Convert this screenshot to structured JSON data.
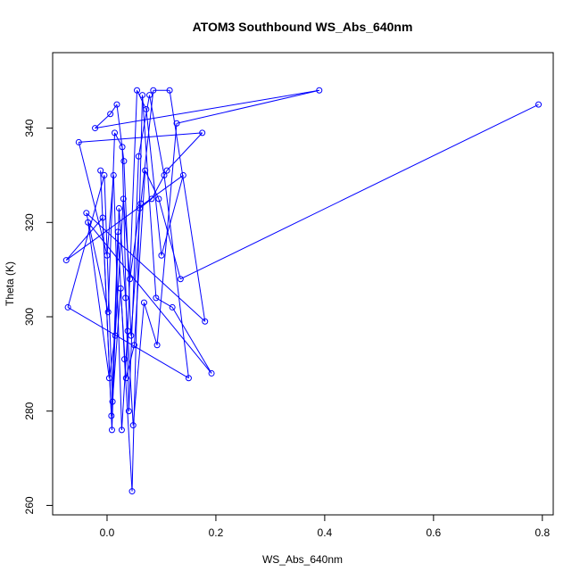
{
  "chart_data": {
    "type": "scatter",
    "title": "ATOM3 Southbound WS_Abs_640nm",
    "xlabel": "WS_Abs_640nm",
    "ylabel": "Theta (K)",
    "xlim": [
      -0.1,
      0.82
    ],
    "ylim": [
      258,
      356
    ],
    "xticks": [
      0.0,
      0.2,
      0.4,
      0.6,
      0.8
    ],
    "xtick_labels": [
      "0.0",
      "0.2",
      "0.4",
      "0.6",
      "0.8"
    ],
    "yticks": [
      260,
      280,
      300,
      320,
      340
    ],
    "ytick_labels": [
      "260",
      "280",
      "300",
      "320",
      "340"
    ],
    "marker": "open-circle",
    "connected": true,
    "grid": false,
    "color": "#0000ff",
    "series": [
      {
        "x": [
          -0.075,
          -0.072,
          -0.052,
          -0.038,
          -0.035,
          -0.022,
          -0.012,
          -0.008,
          -0.005,
          0.0,
          0.002,
          0.004,
          0.006,
          0.008,
          0.009,
          0.01,
          0.012,
          0.014,
          0.015,
          0.018,
          0.02,
          0.022,
          0.025,
          0.027,
          0.028,
          0.03,
          0.031,
          0.032,
          0.034,
          0.035,
          0.038,
          0.04,
          0.042,
          0.044,
          0.046,
          0.048,
          0.05,
          0.055,
          0.058,
          0.06,
          0.062,
          0.065,
          0.068,
          0.07,
          0.072,
          0.078,
          0.082,
          0.085,
          0.09,
          0.092,
          0.095,
          0.1,
          0.105,
          0.11,
          0.115,
          0.12,
          0.128,
          0.135,
          0.14,
          0.15,
          0.175,
          0.18,
          0.192,
          0.39,
          0.793
        ],
        "y": [
          312,
          302,
          337,
          322,
          320,
          340,
          331,
          321,
          330,
          313,
          301,
          287,
          343,
          279,
          276,
          282,
          330,
          339,
          296,
          345,
          318,
          323,
          306,
          276,
          336,
          325,
          333,
          291,
          304,
          287,
          297,
          280,
          308,
          296,
          263,
          277,
          294,
          348,
          334,
          323,
          324,
          347,
          303,
          331,
          344,
          347,
          325,
          348,
          304,
          294,
          325,
          313,
          330,
          331,
          348,
          302,
          341,
          308,
          330,
          287,
          339,
          299,
          288,
          348,
          345
        ]
      }
    ]
  }
}
